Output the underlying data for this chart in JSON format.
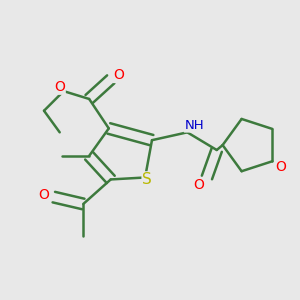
{
  "bg_color": "#e8e8e8",
  "bond_color": "#3d7a3d",
  "bond_width": 1.8,
  "atom_colors": {
    "S": "#b8b800",
    "O": "#ff0000",
    "N": "#0000cc",
    "C": "#3d7a3d"
  },
  "font_size": 10,
  "figsize": [
    3.0,
    3.0
  ],
  "dpi": 100
}
